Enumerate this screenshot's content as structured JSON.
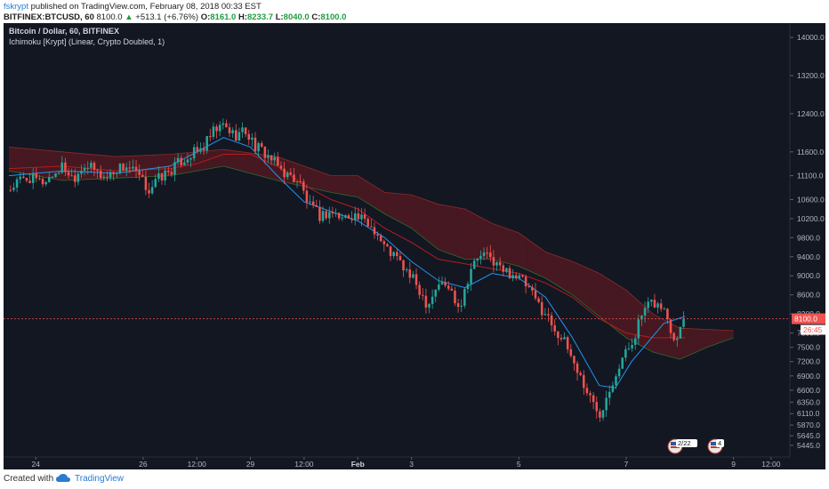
{
  "header": {
    "author": "fskrypt",
    "published": "published on TradingView.com, February 08, 2018 00:33 EST",
    "symbol": "BITFINEX:BTCUSD, 60",
    "last": "8100.0",
    "change_arrow": "▲",
    "change": "+513.1 (+6.76%)",
    "o_label": "O:",
    "o_value": "8161.0",
    "h_label": "H:",
    "h_value": "8233.7",
    "l_label": "L:",
    "l_value": "8040.0",
    "c_label": "C:",
    "c_value": "8100.0"
  },
  "legend": {
    "title": "Bitcoin / Dollar, 60, BITFINEX",
    "indicator": "Ichimoku [Krypt] (Linear, Crypto Doubled, 1)"
  },
  "colors": {
    "background": "#131722",
    "up": "#26a69a",
    "down": "#ef5350",
    "conversion": "#2196f3",
    "base": "#b71c1c",
    "cloud_bear": "#5a1a22",
    "cloud_bull": "#1b3a1e",
    "price_line": "#ef5350"
  },
  "badges": {
    "price": "8100.0",
    "countdown": "26:45",
    "events_1": "2/22",
    "events_2": "4"
  },
  "footer": {
    "created": "Created with",
    "brand": "TradingView"
  },
  "chart_data": {
    "type": "candlestick",
    "title": "Bitcoin / Dollar, 60, BITFINEX",
    "ylim": [
      5200,
      14300
    ],
    "y_ticks": [
      "14000.0",
      "13200.0",
      "12400.0",
      "11600.0",
      "11100.0",
      "10600.0",
      "10200.0",
      "9800.0",
      "9400.0",
      "9000.0",
      "8600.0",
      "8200.0",
      "7800.0",
      "7500.0",
      "7200.0",
      "6900.0",
      "6600.0",
      "6350.0",
      "6110.0",
      "5870.0",
      "5645.0",
      "5445.0"
    ],
    "y_tick_values": [
      14000,
      13200,
      12400,
      11600,
      11100,
      10600,
      10200,
      9800,
      9400,
      9000,
      8600,
      8200,
      7800,
      7500,
      7200,
      6900,
      6600,
      6350,
      6110,
      5870,
      5645,
      5445
    ],
    "x_ticks": [
      "24",
      "26",
      "12:00",
      "29",
      "12:00",
      "Feb",
      "3",
      "5",
      "7",
      "9",
      "12:00"
    ],
    "x_tick_values": [
      0.5,
      2.5,
      3.5,
      4.5,
      5.5,
      6.5,
      7.5,
      9.5,
      11.5,
      13.5,
      14.2
    ],
    "x_range": [
      -0.1,
      14.55
    ],
    "current_price": 8100,
    "price_path": [
      [
        0.0,
        10800
      ],
      [
        0.2,
        11000
      ],
      [
        0.4,
        11050
      ],
      [
        0.6,
        10950
      ],
      [
        0.8,
        11100
      ],
      [
        1.0,
        11300
      ],
      [
        1.2,
        11050
      ],
      [
        1.4,
        11350
      ],
      [
        1.6,
        11200
      ],
      [
        1.8,
        11050
      ],
      [
        2.0,
        11250
      ],
      [
        2.2,
        11300
      ],
      [
        2.4,
        11100
      ],
      [
        2.6,
        10800
      ],
      [
        2.8,
        11050
      ],
      [
        3.0,
        11200
      ],
      [
        3.2,
        11400
      ],
      [
        3.4,
        11550
      ],
      [
        3.6,
        11650
      ],
      [
        3.8,
        12000
      ],
      [
        4.0,
        12150
      ],
      [
        4.2,
        11950
      ],
      [
        4.4,
        12050
      ],
      [
        4.6,
        11700
      ],
      [
        4.8,
        11550
      ],
      [
        5.0,
        11300
      ],
      [
        5.2,
        11100
      ],
      [
        5.4,
        11000
      ],
      [
        5.6,
        10450
      ],
      [
        5.8,
        10250
      ],
      [
        6.0,
        10350
      ],
      [
        6.2,
        10200
      ],
      [
        6.4,
        10300
      ],
      [
        6.6,
        10150
      ],
      [
        6.8,
        10000
      ],
      [
        7.0,
        9600
      ],
      [
        7.2,
        9400
      ],
      [
        7.4,
        9100
      ],
      [
        7.6,
        8800
      ],
      [
        7.8,
        8400
      ],
      [
        8.0,
        8850
      ],
      [
        8.2,
        8750
      ],
      [
        8.4,
        8350
      ],
      [
        8.6,
        9150
      ],
      [
        8.8,
        9450
      ],
      [
        9.0,
        9350
      ],
      [
        9.2,
        9100
      ],
      [
        9.4,
        9050
      ],
      [
        9.6,
        8850
      ],
      [
        9.8,
        8500
      ],
      [
        10.0,
        8200
      ],
      [
        10.2,
        7850
      ],
      [
        10.4,
        7500
      ],
      [
        10.6,
        7000
      ],
      [
        10.8,
        6500
      ],
      [
        11.0,
        6100
      ],
      [
        11.2,
        6700
      ],
      [
        11.4,
        7200
      ],
      [
        11.6,
        7600
      ],
      [
        11.8,
        8200
      ],
      [
        12.0,
        8450
      ],
      [
        12.2,
        8300
      ],
      [
        12.4,
        7700
      ],
      [
        12.6,
        8100
      ]
    ],
    "conversion_line": [
      [
        0.0,
        11100
      ],
      [
        1.0,
        11200
      ],
      [
        2.0,
        11150
      ],
      [
        3.0,
        11300
      ],
      [
        3.5,
        11600
      ],
      [
        4.0,
        11900
      ],
      [
        4.5,
        11700
      ],
      [
        5.0,
        11100
      ],
      [
        5.5,
        10550
      ],
      [
        6.0,
        10350
      ],
      [
        6.5,
        10150
      ],
      [
        7.0,
        9800
      ],
      [
        7.5,
        9300
      ],
      [
        8.0,
        8900
      ],
      [
        8.5,
        8750
      ],
      [
        9.0,
        9050
      ],
      [
        9.5,
        8950
      ],
      [
        10.0,
        8550
      ],
      [
        10.5,
        7700
      ],
      [
        11.0,
        6700
      ],
      [
        11.3,
        6650
      ],
      [
        11.6,
        7200
      ],
      [
        11.9,
        7600
      ],
      [
        12.2,
        8000
      ],
      [
        12.6,
        8150
      ]
    ],
    "base_line": [
      [
        0.0,
        11250
      ],
      [
        1.0,
        11300
      ],
      [
        2.0,
        11200
      ],
      [
        3.0,
        11250
      ],
      [
        3.5,
        11350
      ],
      [
        4.0,
        11550
      ],
      [
        4.5,
        11550
      ],
      [
        5.0,
        11300
      ],
      [
        5.5,
        10900
      ],
      [
        6.0,
        10600
      ],
      [
        6.5,
        10400
      ],
      [
        7.0,
        10000
      ],
      [
        7.5,
        9700
      ],
      [
        8.0,
        9350
      ],
      [
        8.5,
        9250
      ],
      [
        9.0,
        9150
      ],
      [
        9.5,
        9050
      ],
      [
        10.0,
        8850
      ],
      [
        10.5,
        8550
      ],
      [
        11.0,
        8100
      ],
      [
        11.5,
        7800
      ],
      [
        12.0,
        7700
      ],
      [
        12.6,
        7700
      ]
    ],
    "cloud_upper": [
      [
        0.0,
        11700
      ],
      [
        1.0,
        11600
      ],
      [
        2.0,
        11500
      ],
      [
        3.0,
        11550
      ],
      [
        4.0,
        11650
      ],
      [
        5.0,
        11500
      ],
      [
        6.0,
        11100
      ],
      [
        6.5,
        11100
      ],
      [
        7.0,
        10750
      ],
      [
        7.5,
        10700
      ],
      [
        8.0,
        10500
      ],
      [
        8.5,
        10400
      ],
      [
        9.0,
        10100
      ],
      [
        9.5,
        9900
      ],
      [
        10.0,
        9500
      ],
      [
        10.5,
        9300
      ],
      [
        11.0,
        9050
      ],
      [
        11.5,
        8700
      ],
      [
        12.0,
        8200
      ],
      [
        12.5,
        7900
      ],
      [
        13.5,
        7850
      ]
    ],
    "cloud_lower": [
      [
        0.0,
        11200
      ],
      [
        1.0,
        11000
      ],
      [
        2.0,
        11050
      ],
      [
        3.0,
        11100
      ],
      [
        4.0,
        11300
      ],
      [
        5.0,
        11000
      ],
      [
        6.0,
        10750
      ],
      [
        6.5,
        10650
      ],
      [
        7.0,
        10300
      ],
      [
        7.5,
        10000
      ],
      [
        8.0,
        9550
      ],
      [
        8.5,
        9350
      ],
      [
        9.0,
        9350
      ],
      [
        9.5,
        9200
      ],
      [
        10.0,
        8950
      ],
      [
        10.5,
        8600
      ],
      [
        11.0,
        8150
      ],
      [
        11.5,
        7700
      ],
      [
        12.0,
        7400
      ],
      [
        12.5,
        7250
      ],
      [
        13.0,
        7500
      ],
      [
        13.5,
        7700
      ]
    ],
    "grid": false
  }
}
